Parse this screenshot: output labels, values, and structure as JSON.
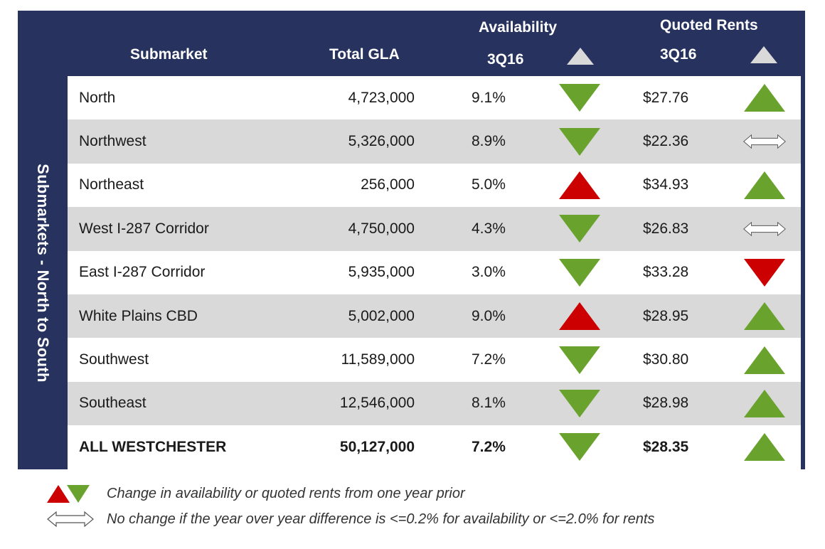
{
  "side_label": "Submarkets - North to South",
  "headers": {
    "submarket": "Submarket",
    "total_gla": "Total GLA",
    "availability": "Availability",
    "availability_period": "3Q16",
    "quoted_rents": "Quoted Rents",
    "quoted_rents_period": "3Q16"
  },
  "rows": [
    {
      "name": "North",
      "gla": "4,723,000",
      "availability": "9.1%",
      "avail_trend": "down-green",
      "rent": "$27.76",
      "rent_trend": "up-green"
    },
    {
      "name": "Northwest",
      "gla": "5,326,000",
      "availability": "8.9%",
      "avail_trend": "down-green",
      "rent": "$22.36",
      "rent_trend": "no-change"
    },
    {
      "name": "Northeast",
      "gla": "256,000",
      "availability": "5.0%",
      "avail_trend": "up-red",
      "rent": "$34.93",
      "rent_trend": "up-green"
    },
    {
      "name": "West I-287 Corridor",
      "gla": "4,750,000",
      "availability": "4.3%",
      "avail_trend": "down-green",
      "rent": "$26.83",
      "rent_trend": "no-change"
    },
    {
      "name": "East I-287 Corridor",
      "gla": "5,935,000",
      "availability": "3.0%",
      "avail_trend": "down-green",
      "rent": "$33.28",
      "rent_trend": "down-red"
    },
    {
      "name": "White Plains CBD",
      "gla": "5,002,000",
      "availability": "9.0%",
      "avail_trend": "up-red",
      "rent": "$28.95",
      "rent_trend": "up-green"
    },
    {
      "name": "Southwest",
      "gla": "11,589,000",
      "availability": "7.2%",
      "avail_trend": "down-green",
      "rent": "$30.80",
      "rent_trend": "up-green"
    },
    {
      "name": "Southeast",
      "gla": "12,546,000",
      "availability": "8.1%",
      "avail_trend": "down-green",
      "rent": "$28.98",
      "rent_trend": "up-green"
    }
  ],
  "total": {
    "name": "ALL WESTCHESTER",
    "gla": "50,127,000",
    "availability": "7.2%",
    "avail_trend": "down-green",
    "rent": "$28.35",
    "rent_trend": "up-green"
  },
  "legend": {
    "change": "Change in availability or quoted rents from one year prior",
    "no_change": "No change if the year over year difference is <=0.2% for availability or <=2.0% for rents"
  },
  "colors": {
    "panel": "#27335e",
    "row_alt": "#d9d9d9",
    "green": "#6aa22e",
    "red": "#cc0000"
  }
}
